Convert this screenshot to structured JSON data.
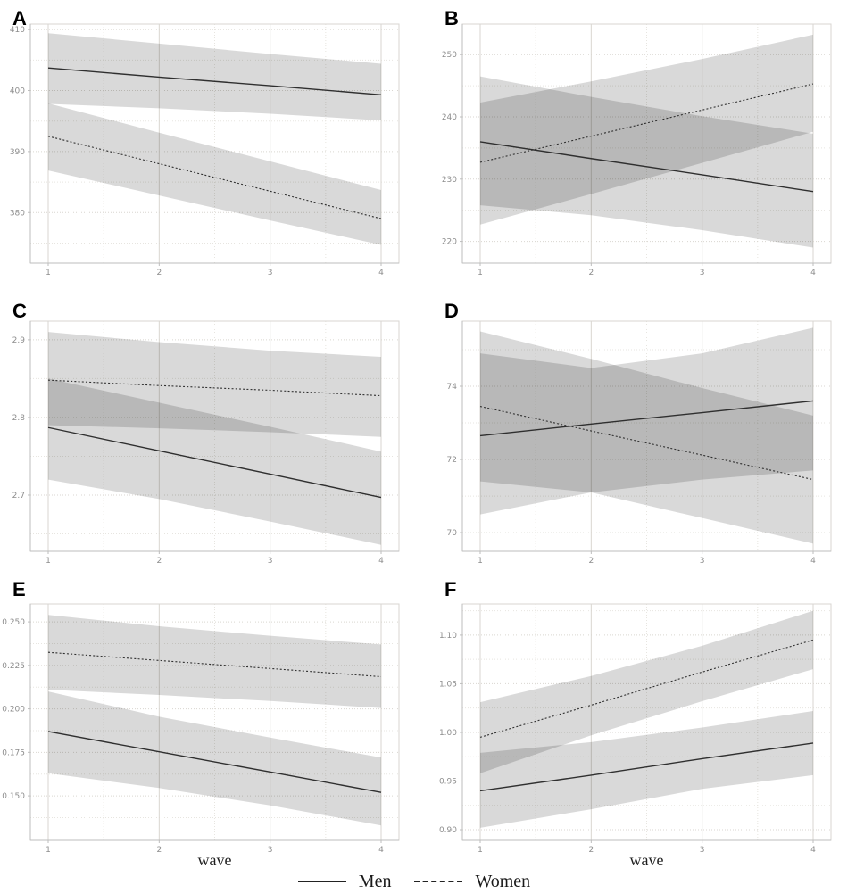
{
  "figure": {
    "xlabel": "wave",
    "legend": {
      "items": [
        {
          "label": "Men",
          "style": "solid"
        },
        {
          "label": "Women",
          "style": "dashed"
        }
      ]
    },
    "colors": {
      "band_fill": "#000000",
      "band_opacity": "0.15",
      "line": "#2f2f2f",
      "grid_major": "#d9d6d0",
      "grid_minor": "#e7e5e0",
      "panel_border": "#d8d6d2",
      "spine": "#bdbdbd",
      "tick_label": "#8d8d8d",
      "axis_label": "#1f1f1f"
    }
  },
  "chart_data": [
    {
      "type": "line",
      "label": "A",
      "x": [
        1,
        2,
        3,
        4
      ],
      "x_ticks": [
        "1",
        "2",
        "3",
        "4"
      ],
      "xlabel": "",
      "ylim": [
        371.7,
        410.9
      ],
      "yticks": [
        380,
        390,
        400,
        410
      ],
      "ytick_labels": [
        "380",
        "390",
        "400",
        "410"
      ],
      "series": [
        {
          "name": "Men",
          "line": "solid",
          "values": [
            403.7,
            402.2,
            400.8,
            399.3
          ],
          "band_upper": [
            409.4,
            407.7,
            406.0,
            404.4
          ],
          "band_lower": [
            397.8,
            397.1,
            396.2,
            395.1
          ]
        },
        {
          "name": "Women",
          "line": "dashed",
          "values": [
            392.5,
            388.0,
            383.5,
            379.0
          ],
          "band_upper": [
            397.9,
            393.1,
            388.4,
            383.7
          ],
          "band_lower": [
            386.9,
            382.8,
            378.7,
            374.7
          ]
        }
      ]
    },
    {
      "type": "line",
      "label": "B",
      "x": [
        1,
        2,
        3,
        4
      ],
      "x_ticks": [
        "1",
        "2",
        "3",
        "4"
      ],
      "xlabel": "",
      "ylim": [
        216.5,
        254.9
      ],
      "yticks": [
        220,
        230,
        240,
        250
      ],
      "ytick_labels": [
        "220",
        "230",
        "240",
        "250"
      ],
      "series": [
        {
          "name": "Men",
          "line": "solid",
          "values": [
            236.0,
            233.3,
            230.7,
            228.0
          ],
          "band_upper": [
            246.5,
            243.2,
            240.1,
            237.3
          ],
          "band_lower": [
            225.8,
            224.2,
            221.8,
            219.0
          ]
        },
        {
          "name": "Women",
          "line": "dashed",
          "values": [
            232.7,
            236.9,
            241.1,
            245.3
          ],
          "band_upper": [
            242.3,
            245.7,
            249.3,
            253.2
          ],
          "band_lower": [
            222.7,
            227.6,
            232.6,
            237.6
          ]
        }
      ]
    },
    {
      "type": "line",
      "label": "C",
      "x": [
        1,
        2,
        3,
        4
      ],
      "x_ticks": [
        "1",
        "2",
        "3",
        "4"
      ],
      "xlabel": "",
      "ylim": [
        2.6276,
        2.924
      ],
      "yticks": [
        2.7,
        2.8,
        2.9
      ],
      "ytick_labels": [
        "2.7",
        "2.8",
        "2.9"
      ],
      "series": [
        {
          "name": "Men",
          "line": "solid",
          "values": [
            2.787,
            2.757,
            2.727,
            2.697
          ],
          "band_upper": [
            2.85,
            2.819,
            2.788,
            2.756
          ],
          "band_lower": [
            2.72,
            2.695,
            2.666,
            2.636
          ]
        },
        {
          "name": "Women",
          "line": "dashed",
          "values": [
            2.848,
            2.841,
            2.835,
            2.828
          ],
          "band_upper": [
            2.91,
            2.897,
            2.886,
            2.878
          ],
          "band_lower": [
            2.79,
            2.786,
            2.781,
            2.775
          ]
        }
      ]
    },
    {
      "type": "line",
      "label": "D",
      "x": [
        1,
        2,
        3,
        4
      ],
      "x_ticks": [
        "1",
        "2",
        "3",
        "4"
      ],
      "xlabel": "",
      "ylim": [
        69.49,
        75.78
      ],
      "yticks": [
        70,
        72,
        74
      ],
      "ytick_labels": [
        "70",
        "72",
        "74"
      ],
      "series": [
        {
          "name": "Men",
          "line": "solid",
          "values": [
            72.65,
            72.97,
            73.28,
            73.6
          ],
          "band_upper": [
            74.9,
            74.5,
            74.9,
            75.6
          ],
          "band_lower": [
            70.5,
            71.1,
            71.45,
            71.7
          ]
        },
        {
          "name": "Women",
          "line": "dashed",
          "values": [
            73.45,
            72.78,
            72.12,
            71.45
          ],
          "band_upper": [
            75.5,
            74.75,
            73.95,
            73.2
          ],
          "band_lower": [
            71.4,
            71.1,
            70.4,
            69.7
          ]
        }
      ]
    },
    {
      "type": "line",
      "label": "E",
      "x": [
        1,
        2,
        3,
        4
      ],
      "x_ticks": [
        "1",
        "2",
        "3",
        "4"
      ],
      "xlabel": "wave",
      "ylim": [
        0.1244,
        0.2603
      ],
      "yticks": [
        0.15,
        0.175,
        0.2,
        0.225,
        0.25
      ],
      "ytick_labels": [
        "0.150",
        "0.175",
        "0.200",
        "0.225",
        "0.250"
      ],
      "series": [
        {
          "name": "Men",
          "line": "solid",
          "values": [
            0.187,
            0.1753,
            0.1637,
            0.152
          ],
          "band_upper": [
            0.21,
            0.1955,
            0.1835,
            0.172
          ],
          "band_lower": [
            0.163,
            0.1545,
            0.1445,
            0.133
          ]
        },
        {
          "name": "Women",
          "line": "dashed",
          "values": [
            0.2325,
            0.2278,
            0.2232,
            0.2185
          ],
          "band_upper": [
            0.254,
            0.2475,
            0.242,
            0.237
          ],
          "band_lower": [
            0.211,
            0.208,
            0.2045,
            0.2005
          ]
        }
      ]
    },
    {
      "type": "line",
      "label": "F",
      "x": [
        1,
        2,
        3,
        4
      ],
      "x_ticks": [
        "1",
        "2",
        "3",
        "4"
      ],
      "xlabel": "wave",
      "ylim": [
        0.889,
        1.132
      ],
      "yticks": [
        0.9,
        0.95,
        1.0,
        1.05,
        1.1
      ],
      "ytick_labels": [
        "0.90",
        "0.95",
        "1.00",
        "1.05",
        "1.10"
      ],
      "series": [
        {
          "name": "Men",
          "line": "solid",
          "values": [
            0.94,
            0.956,
            0.973,
            0.989
          ],
          "band_upper": [
            0.979,
            0.99,
            1.005,
            1.022
          ],
          "band_lower": [
            0.902,
            0.921,
            0.942,
            0.956
          ]
        },
        {
          "name": "Women",
          "line": "dashed",
          "values": [
            0.995,
            1.028,
            1.062,
            1.095
          ],
          "band_upper": [
            1.031,
            1.058,
            1.089,
            1.125
          ],
          "band_lower": [
            0.958,
            0.997,
            1.032,
            1.065
          ]
        }
      ]
    }
  ]
}
